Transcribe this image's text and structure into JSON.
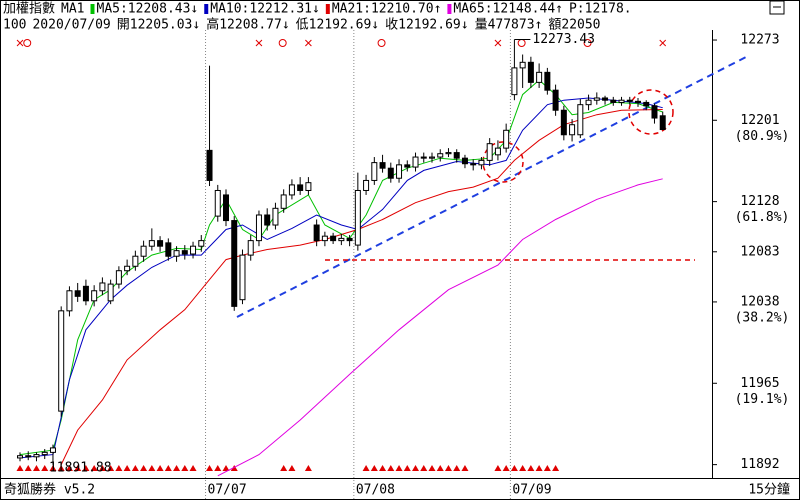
{
  "chart_data": {
    "type": "candlestick",
    "header": [
      "加權指數",
      "MA1"
    ],
    "signal": {
      "text": "P:12178.",
      "color": "#00b000"
    },
    "header2": [
      "100",
      "2020/07/09",
      "開12205.03↓",
      "高12208.77↓",
      "低12192.69↓",
      "收12192.69↓",
      "量477873↑",
      "額22050"
    ],
    "brand": "奇狐勝券 v5.2",
    "interval": "15分鐘",
    "categories": [
      null,
      null,
      null,
      null,
      null,
      null,
      null,
      null,
      null,
      null,
      null,
      null,
      null,
      null,
      null,
      null,
      null,
      null,
      null,
      null,
      null,
      null,
      null,
      "07/07",
      null,
      null,
      null,
      null,
      null,
      null,
      null,
      null,
      null,
      null,
      null,
      null,
      null,
      null,
      null,
      null,
      null,
      "07/08",
      null,
      null,
      null,
      null,
      null,
      null,
      null,
      null,
      null,
      null,
      null,
      null,
      null,
      null,
      null,
      null,
      null,
      null,
      "07/09",
      null,
      null,
      null,
      null,
      null,
      null,
      null,
      null,
      null,
      null,
      null,
      null,
      null,
      null,
      null,
      null,
      null,
      null
    ],
    "open": [
      11898,
      11900,
      11899,
      11901,
      11903,
      11940,
      12030,
      12048,
      12052,
      12039,
      12048,
      12039,
      12054,
      12066,
      12070,
      12079,
      12088,
      12093,
      12091,
      12079,
      12084,
      12081,
      12088,
      12174,
      12115,
      12134,
      12111,
      12040,
      12080,
      12093,
      12116,
      12107,
      12122,
      12134,
      12143,
      12138,
      12107,
      12093,
      12097,
      12093,
      12095,
      12089,
      12138,
      12147,
      12163,
      12158,
      12149,
      12161,
      12159,
      12168,
      12167,
      12168,
      12171,
      12172,
      12167,
      12162,
      12161,
      12165,
      12170,
      12176,
      12224,
      12248,
      12253,
      12235,
      12244,
      12228,
      12210,
      12188,
      12188,
      12215,
      12219,
      12221,
      12219,
      12217,
      12219,
      12218,
      12217,
      12214,
      12205.03
    ],
    "high": [
      11903,
      11904,
      11903,
      11906,
      11910,
      12034,
      12052,
      12055,
      12058,
      12053,
      12060,
      12058,
      12070,
      12076,
      12084,
      12093,
      12104,
      12097,
      12095,
      12088,
      12089,
      12092,
      12098,
      12250,
      12143,
      12139,
      12115,
      12085,
      12098,
      12120,
      12122,
      12127,
      12139,
      12148,
      12150,
      12150,
      12112,
      12101,
      12100,
      12099,
      12098,
      12154,
      12152,
      12168,
      12170,
      12163,
      12166,
      12165,
      12172,
      12172,
      12172,
      12175,
      12176,
      12175,
      12170,
      12166,
      12168,
      12185,
      12183,
      12198,
      12273.43,
      12260,
      12258,
      12252,
      12248,
      12233,
      12214,
      12202,
      12220,
      12224,
      12226,
      12223,
      12222,
      12222,
      12222,
      12221,
      12219,
      12216,
      12208.77
    ],
    "low": [
      11895,
      11896,
      11895,
      11897,
      11891.88,
      11935,
      12025,
      12038,
      12035,
      12034,
      12044,
      12036,
      12050,
      12062,
      12066,
      12074,
      12084,
      12083,
      12075,
      12074,
      12076,
      12077,
      12083,
      12142,
      12110,
      12106,
      12030,
      12036,
      12075,
      12088,
      12102,
      12103,
      12118,
      12130,
      12134,
      12134,
      12088,
      12088,
      12090,
      12089,
      12088,
      12084,
      12134,
      12143,
      12154,
      12145,
      12145,
      12155,
      12155,
      12163,
      12163,
      12164,
      12168,
      12163,
      12158,
      12156,
      12157,
      12160,
      12165,
      12172,
      12219,
      12230,
      12230,
      12230,
      12224,
      12205,
      12183,
      12182,
      12185,
      12210,
      12215,
      12215,
      12214,
      12214,
      12215,
      12213,
      12210,
      12198,
      12192.69
    ],
    "close": [
      11900,
      11899,
      11901,
      11903,
      11907,
      12030,
      12048,
      12043,
      12039,
      12048,
      12055,
      12054,
      12066,
      12070,
      12079,
      12088,
      12093,
      12088,
      12079,
      12084,
      12081,
      12088,
      12093,
      12147,
      12138,
      12111,
      12034,
      12080,
      12093,
      12116,
      12107,
      12122,
      12134,
      12143,
      12138,
      12145,
      12093,
      12097,
      12093,
      12095,
      12093,
      12138,
      12147,
      12163,
      12158,
      12149,
      12161,
      12159,
      12168,
      12167,
      12168,
      12171,
      12172,
      12167,
      12162,
      12161,
      12165,
      12180,
      12176,
      12192,
      12248,
      12253,
      12235,
      12244,
      12228,
      12210,
      12188,
      12197,
      12215,
      12219,
      12221,
      12219,
      12217,
      12219,
      12218,
      12217,
      12214,
      12203,
      12192.69
    ],
    "series": [
      {
        "name": "MA5:12208.43↓",
        "color": "#00c000",
        "x": [
          0,
          4,
          5,
          7,
          9,
          11,
          13,
          16,
          19,
          22,
          23,
          25,
          27,
          29,
          31,
          35,
          37,
          40,
          42,
          44,
          47,
          51,
          54,
          57,
          59,
          61,
          63,
          65,
          67,
          69,
          72,
          75,
          78
        ],
        "values": [
          11901,
          11905,
          11932,
          12004,
          12040,
          12049,
          12065,
          12080,
          12086,
          12085,
          12107,
          12130,
          12103,
          12094,
          12116,
          12134,
          12107,
          12095,
          12116,
          12147,
          12158,
          12167,
          12165,
          12167,
          12183,
          12224,
          12237,
          12224,
          12206,
          12208,
          12217,
          12216,
          12208.43
        ]
      },
      {
        "name": "MA10:12212.31↓",
        "color": "#0000c0",
        "x": [
          0,
          4,
          6,
          8,
          11,
          13,
          16,
          19,
          22,
          25,
          27,
          30,
          33,
          36,
          39,
          41,
          44,
          47,
          49,
          53,
          57,
          59,
          61,
          64,
          66,
          69,
          72,
          76,
          78
        ],
        "values": [
          11898,
          11901,
          11968,
          12013,
          12040,
          12053,
          12069,
          12080,
          12080,
          12103,
          12107,
          12094,
          12104,
          12116,
          12107,
          12103,
          12121,
          12147,
          12156,
          12164,
          12161,
          12165,
          12192,
          12215,
          12219,
          12221,
          12219,
          12216,
          12212.31
        ]
      },
      {
        "name": "MA21:12210.70↑",
        "color": "#e00000",
        "x": [
          5,
          7,
          10,
          13,
          17,
          20,
          23,
          25,
          27,
          30,
          34,
          37,
          41,
          44,
          48,
          52,
          55,
          58,
          60,
          63,
          66,
          70,
          73,
          78
        ],
        "values": [
          11892,
          11923,
          11950,
          11986,
          12013,
          12031,
          12058,
          12076,
          12080,
          12085,
          12089,
          12094,
          12103,
          12112,
          12127,
          12137,
          12141,
          12149,
          12165,
          12183,
          12197,
          12206,
          12210,
          12210.7
        ]
      },
      {
        "name": "MA65:12148.44↑",
        "color": "#e000e0",
        "x": [
          24,
          29,
          34,
          40,
          46,
          52,
          58,
          61,
          65,
          70,
          75,
          78
        ],
        "values": [
          11882,
          11901,
          11932,
          11973,
          12013,
          12049,
          12071,
          12094,
          12112,
          12130,
          12143,
          12148.44
        ]
      }
    ],
    "ylim": [
      11880,
      12282
    ],
    "yticks": [
      12273,
      12201,
      12128,
      12083,
      12038,
      11965,
      11892
    ],
    "fib_ticks": [
      {
        "value": 12201,
        "label": "(80.9%)"
      },
      {
        "value": 12128,
        "label": "(61.8%)"
      },
      {
        "value": 12038,
        "label": "(38.2%)"
      },
      {
        "value": 11965,
        "label": "(19.1%)"
      }
    ]
  }
}
